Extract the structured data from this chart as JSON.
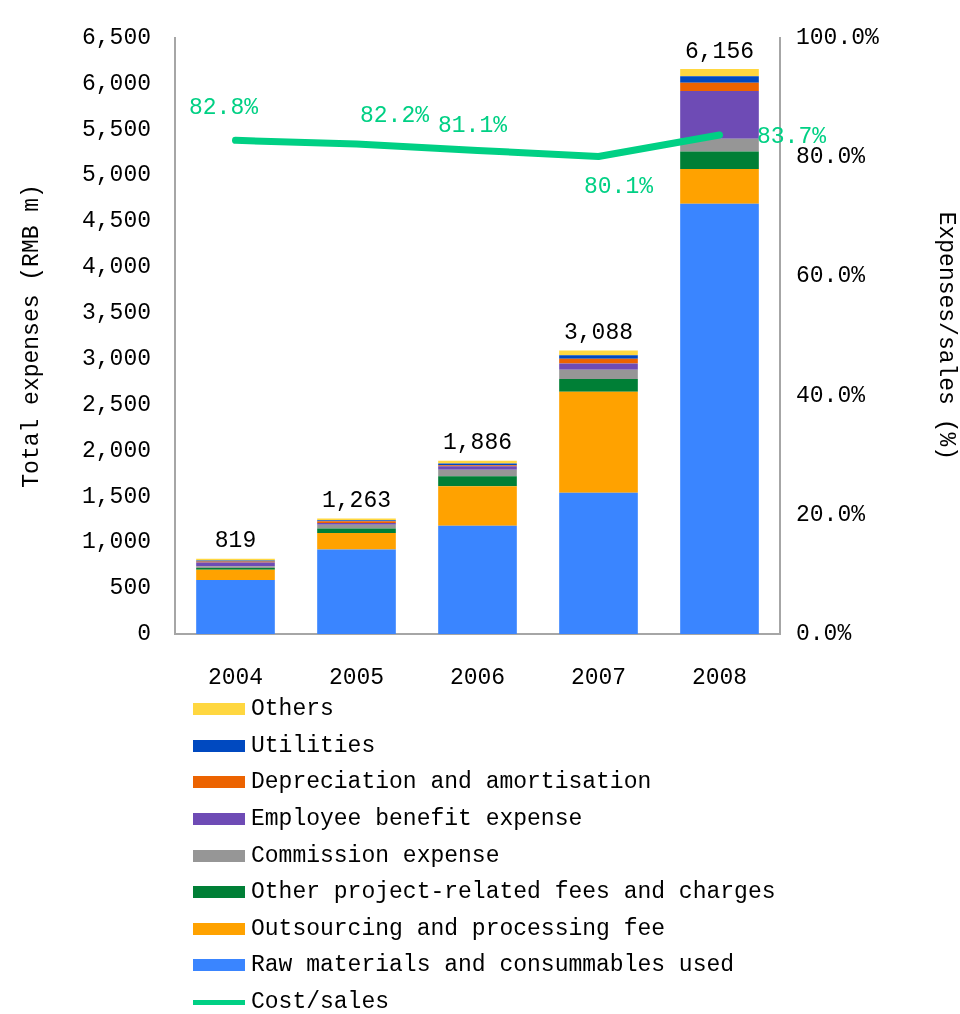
{
  "chart_data": {
    "type": "bar",
    "stacked": true,
    "categories": [
      "2004",
      "2005",
      "2006",
      "2007",
      "2008"
    ],
    "series": [
      {
        "name": "Raw materials and consummables used",
        "color": "#3a85ff",
        "values": [
          590,
          920,
          1180,
          1540,
          4690
        ]
      },
      {
        "name": "Outsourcing and processing fee",
        "color": "#ffa200",
        "values": [
          110,
          180,
          430,
          1100,
          380
        ]
      },
      {
        "name": "Other project-related fees and charges",
        "color": "#007f36",
        "values": [
          20,
          50,
          110,
          140,
          190
        ]
      },
      {
        "name": "Commission expense",
        "color": "#969696",
        "values": [
          20,
          40,
          70,
          100,
          140
        ]
      },
      {
        "name": "Employee benefit expense",
        "color": "#6e4bb5",
        "values": [
          40,
          20,
          40,
          70,
          520
        ]
      },
      {
        "name": "Depreciation and amortisation",
        "color": "#ec6300",
        "values": [
          10,
          20,
          10,
          50,
          90
        ]
      },
      {
        "name": "Utilities",
        "color": "#0049c0",
        "values": [
          10,
          10,
          20,
          40,
          70
        ]
      },
      {
        "name": "Others",
        "color": "#ffd740",
        "values": [
          20,
          20,
          30,
          50,
          80
        ]
      },
      {
        "name": "Cost/sales",
        "type": "line",
        "axis": "y2",
        "color": "#00d084",
        "values": [
          82.8,
          82.2,
          81.1,
          80.1,
          83.7
        ],
        "value_labels": [
          "82.8%",
          "82.2%",
          "81.1%",
          "80.1%",
          "83.7%"
        ]
      }
    ],
    "totals": [
      "819",
      "1,263",
      "1,886",
      "3,088",
      "6,156"
    ],
    "ylabel": "Total expenses (RMB m)",
    "y2label": "Expenses/sales (%)",
    "ylim": [
      0,
      6500
    ],
    "yticks": [
      0,
      500,
      {
        "value": 1000,
        "label": "1,000"
      },
      {
        "value": 1500,
        "label": "1,500"
      },
      {
        "value": 2000,
        "label": "2,000"
      },
      {
        "value": 2500,
        "label": "2,500"
      },
      {
        "value": 3000,
        "label": "3,000"
      },
      {
        "value": 3500,
        "label": "3,500"
      },
      {
        "value": 4000,
        "label": "4,000"
      },
      {
        "value": 4500,
        "label": "4,500"
      },
      {
        "value": 5000,
        "label": "5,000"
      },
      {
        "value": 5500,
        "label": "5,500"
      },
      {
        "value": 6000,
        "label": "6,000"
      },
      {
        "value": 6500,
        "label": "6,500"
      }
    ],
    "y2lim": [
      0,
      100
    ],
    "y2ticks": [
      {
        "value": 0,
        "label": "0.0%"
      },
      {
        "value": 20,
        "label": "20.0%"
      },
      {
        "value": 40,
        "label": "40.0%"
      },
      {
        "value": 60,
        "label": "60.0%"
      },
      {
        "value": 80,
        "label": "80.0%"
      },
      {
        "value": 100,
        "label": "100.0%"
      }
    ],
    "legend": "bottom"
  }
}
